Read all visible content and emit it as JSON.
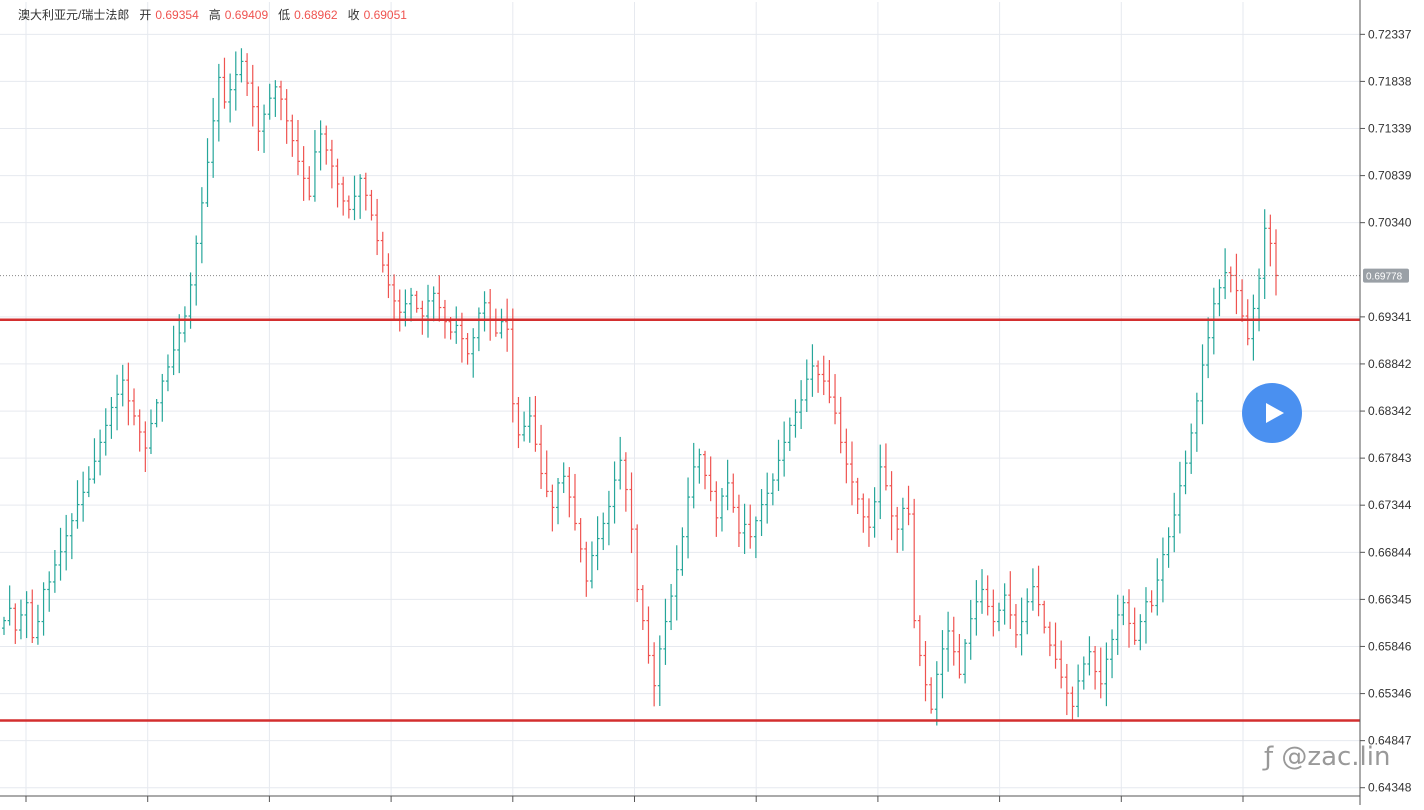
{
  "legend": {
    "symbol": "澳大利亚元/瑞士法郎",
    "open_label": "开",
    "open_value": "0.69354",
    "high_label": "高",
    "high_value": "0.69409",
    "low_label": "低",
    "low_value": "0.68962",
    "close_label": "收",
    "close_value": "0.69051"
  },
  "watermark": "ƒ @zac.lin",
  "colors": {
    "up": "#26a69a",
    "down": "#ef5350",
    "support_line": "#d32f2f",
    "grid": "#e6e9ef",
    "play": "#4a90f0",
    "price_tag": "#9aa0a6"
  },
  "chart_data": {
    "type": "ohlc",
    "title": "澳大利亚元/瑞士法郎",
    "y_ticks": [
      "0.72337",
      "0.71838",
      "0.71339",
      "0.70839",
      "0.70340",
      "0.69341",
      "0.68842",
      "0.68342",
      "0.67843",
      "0.67344",
      "0.66844",
      "0.66345",
      "0.65846",
      "0.65346",
      "0.64847",
      "0.64348"
    ],
    "ylim": [
      0.6426,
      0.7268
    ],
    "current_price": 0.69778,
    "current_price_label": "0.69778",
    "horizontal_levels": [
      0.6931,
      0.6506
    ],
    "close_series": [
      0.6612,
      0.6625,
      0.6602,
      0.6618,
      0.6631,
      0.6594,
      0.6611,
      0.6645,
      0.6653,
      0.6671,
      0.6685,
      0.6702,
      0.6718,
      0.6735,
      0.6748,
      0.6762,
      0.6781,
      0.6801,
      0.6819,
      0.6838,
      0.6852,
      0.6867,
      0.6845,
      0.6829,
      0.6812,
      0.6795,
      0.6821,
      0.6843,
      0.6866,
      0.6881,
      0.6899,
      0.6917,
      0.6935,
      0.6968,
      0.7012,
      0.7055,
      0.7098,
      0.7142,
      0.7188,
      0.7162,
      0.7175,
      0.7191,
      0.7205,
      0.7182,
      0.7157,
      0.7131,
      0.7149,
      0.7166,
      0.7178,
      0.7165,
      0.7142,
      0.7121,
      0.7099,
      0.7081,
      0.7062,
      0.7109,
      0.7128,
      0.7111,
      0.7094,
      0.7075,
      0.7057,
      0.7048,
      0.7062,
      0.7081,
      0.7063,
      0.7042,
      0.7015,
      0.6989,
      0.6968,
      0.6951,
      0.6939,
      0.6948,
      0.6957,
      0.6943,
      0.6935,
      0.6951,
      0.6959,
      0.6944,
      0.6929,
      0.6918,
      0.6925,
      0.6911,
      0.6895,
      0.6912,
      0.6938,
      0.6949,
      0.6931,
      0.6917,
      0.6929,
      0.6921,
      0.6842,
      0.6809,
      0.6818,
      0.6829,
      0.6799,
      0.6768,
      0.6749,
      0.6732,
      0.6758,
      0.6765,
      0.6743,
      0.6715,
      0.6688,
      0.6654,
      0.6681,
      0.6699,
      0.6715,
      0.6733,
      0.6761,
      0.6782,
      0.6751,
      0.6709,
      0.6645,
      0.6612,
      0.6575,
      0.6543,
      0.6582,
      0.6611,
      0.6638,
      0.6666,
      0.6701,
      0.6743,
      0.6775,
      0.6788,
      0.6766,
      0.6749,
      0.6721,
      0.6744,
      0.6758,
      0.6732,
      0.6705,
      0.6714,
      0.6701,
      0.6718,
      0.6735,
      0.6747,
      0.6761,
      0.6782,
      0.6801,
      0.6819,
      0.6833,
      0.6846,
      0.6868,
      0.6882,
      0.6873,
      0.6866,
      0.6849,
      0.6832,
      0.6801,
      0.6778,
      0.6759,
      0.6741,
      0.6722,
      0.6711,
      0.6738,
      0.6775,
      0.6755,
      0.6723,
      0.6709,
      0.6731,
      0.6725,
      0.6612,
      0.6575,
      0.6544,
      0.6518,
      0.6555,
      0.6582,
      0.6601,
      0.6579,
      0.6555,
      0.6588,
      0.6614,
      0.6632,
      0.6645,
      0.6627,
      0.6611,
      0.6623,
      0.6639,
      0.6618,
      0.6597,
      0.6611,
      0.6632,
      0.6648,
      0.6629,
      0.6605,
      0.6586,
      0.6571,
      0.6552,
      0.6535,
      0.6521,
      0.6548,
      0.6566,
      0.6579,
      0.6558,
      0.6545,
      0.6571,
      0.6592,
      0.6618,
      0.6631,
      0.6609,
      0.6591,
      0.6611,
      0.6632,
      0.6628,
      0.6655,
      0.6682,
      0.6701,
      0.6724,
      0.6755,
      0.6779,
      0.6811,
      0.6845,
      0.6883,
      0.6912,
      0.6948,
      0.6965,
      0.6981,
      0.6978,
      0.6962,
      0.6935,
      0.6911,
      0.6943,
      0.6975,
      0.7028,
      0.7012,
      0.6978
    ]
  }
}
